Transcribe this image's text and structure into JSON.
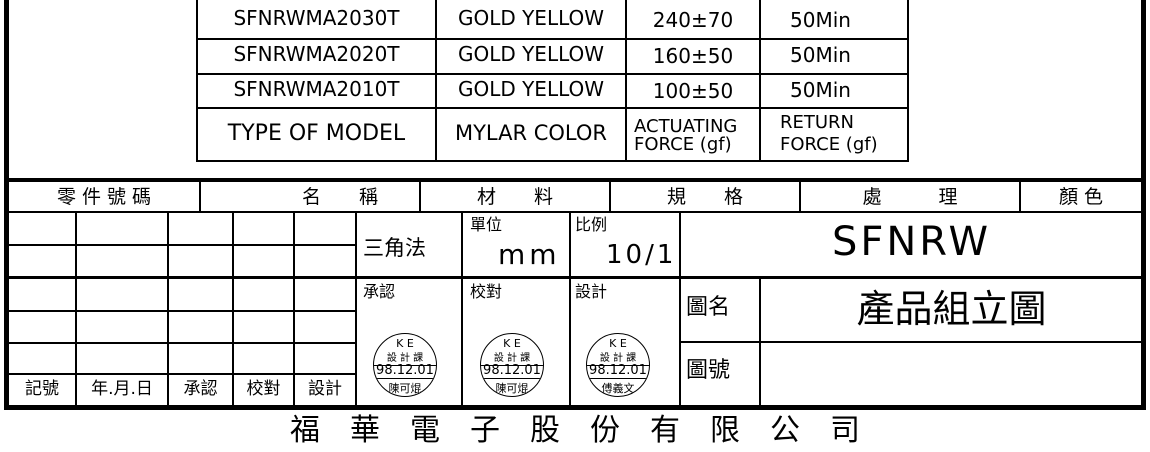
{
  "spec_table": {
    "rows": [
      {
        "model": "SFNRWMA2030T",
        "color": "GOLD YELLOW",
        "actuating": "240±70",
        "return": "50Min"
      },
      {
        "model": "SFNRWMA2020T",
        "color": "GOLD YELLOW",
        "actuating": "160±50",
        "return": "50Min"
      },
      {
        "model": "SFNRWMA2010T",
        "color": "GOLD YELLOW",
        "actuating": "100±50",
        "return": "50Min"
      }
    ],
    "headers": {
      "model": "TYPE OF MODEL",
      "color": "MYLAR COLOR",
      "actuating_1": "ACTUATING",
      "actuating_2": "FORCE (gf)",
      "return_1": "RETURN",
      "return_2": "FORCE (gf)"
    }
  },
  "parts_header": {
    "part_no": "零 件 號 碼",
    "name": "名　　稱",
    "material": "材　　料",
    "spec": "規　　格",
    "treatment": "處　　　理",
    "color": "顏 色"
  },
  "revision": {
    "mark": "記號",
    "date": "年.月.日",
    "approve": "承認",
    "check": "校對",
    "design": "設計"
  },
  "title_block": {
    "projection": "三角法",
    "unit_label": "單位",
    "unit_value": "mm",
    "scale_label": "比例",
    "scale_value": "10/1",
    "model_name": "SFNRW",
    "approve_label": "承認",
    "check_label": "校對",
    "design_label": "設計",
    "drawing_name_label": "圖名",
    "drawing_name": "產品組立圖",
    "drawing_no_label": "圖號",
    "drawing_no": ""
  },
  "stamps": [
    {
      "org": "K E",
      "dept": "設 計 課",
      "date": "98.12.01",
      "name": "陳可焜"
    },
    {
      "org": "K E",
      "dept": "設 計 課",
      "date": "98.12.01",
      "name": "陳可焜"
    },
    {
      "org": "K E",
      "dept": "設 計 課",
      "date": "98.12.01",
      "name": "傅義文"
    }
  ],
  "company": "福　華　電　子　股　份　有　限　公　司"
}
